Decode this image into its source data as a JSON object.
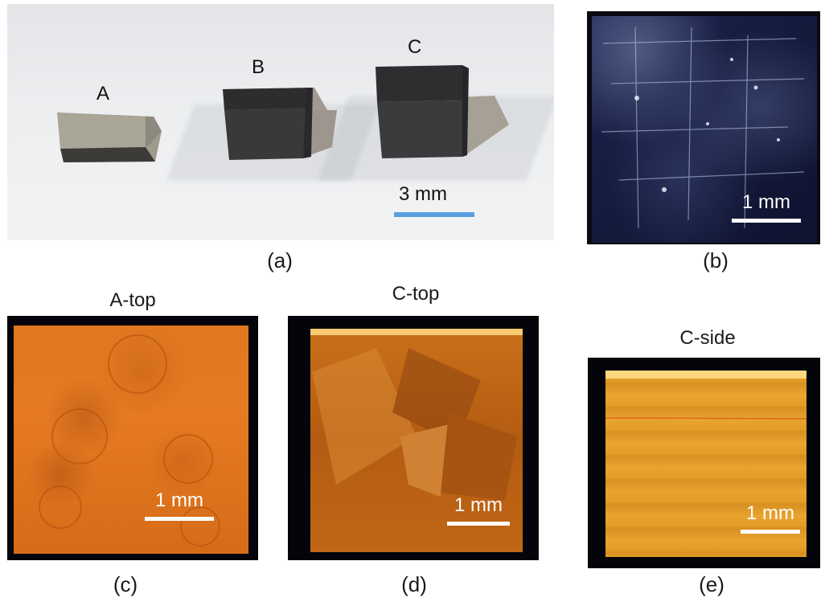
{
  "panels": {
    "a": {
      "caption": "(a)",
      "labels": [
        "A",
        "B",
        "C"
      ],
      "scalebar": "3 mm",
      "colors": {
        "scalebar": "#5aa0e0",
        "background": "#e9ebee"
      }
    },
    "b": {
      "caption": "(b)",
      "scalebar": "1 mm",
      "colors": {
        "scalebar": "#ffffff"
      }
    },
    "c": {
      "title": "A-top",
      "caption": "(c)",
      "scalebar": "1 mm",
      "colors": {
        "scalebar": "#ffffff",
        "sample": "#e07820"
      }
    },
    "d": {
      "title": "C-top",
      "caption": "(d)",
      "scalebar": "1 mm",
      "colors": {
        "scalebar": "#ffffff",
        "sample": "#b35c12"
      }
    },
    "e": {
      "title": "C-side",
      "caption": "(e)",
      "scalebar": "1 mm",
      "colors": {
        "scalebar": "#ffffff",
        "sample": "#e7a22e"
      }
    }
  }
}
